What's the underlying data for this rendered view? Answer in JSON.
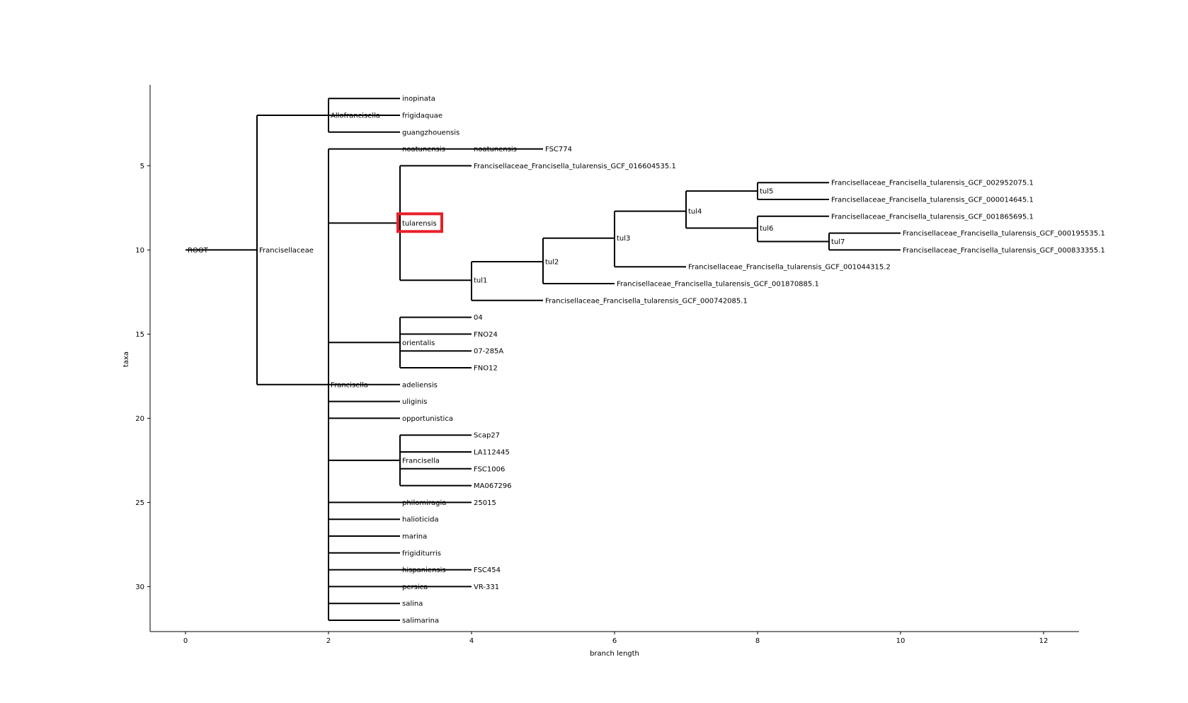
{
  "chart_data": {
    "type": "tree",
    "xlabel": "branch length",
    "ylabel": "taxa",
    "xlim": [
      -0.5,
      12.5
    ],
    "ylim": [
      33,
      0.2
    ],
    "xticks": [
      0,
      2,
      4,
      6,
      8,
      10,
      12
    ],
    "yticks": [
      5,
      10,
      15,
      20,
      25,
      30
    ],
    "highlighted_node": "tularensis",
    "highlight_color": "#e8202a",
    "nodes": [
      {
        "label": "ROOT",
        "x": 0,
        "y": 10
      },
      {
        "label": "Francisellaceae",
        "x": 1,
        "y": 10
      },
      {
        "label": "Allofrancisella",
        "x": 2,
        "y": 2
      },
      {
        "label": "inopinata",
        "x": 3,
        "y": 1
      },
      {
        "label": "frigidaquae",
        "x": 3,
        "y": 2
      },
      {
        "label": "guangzhouensis",
        "x": 3,
        "y": 3
      },
      {
        "label": "Francisella",
        "x": 2,
        "y": 18
      },
      {
        "label": "noatunensis",
        "x": 3,
        "y": 4
      },
      {
        "label": "noatunensis",
        "x": 4,
        "y": 4
      },
      {
        "label": "FSC774",
        "x": 5,
        "y": 4
      },
      {
        "label": "tularensis",
        "x": 3,
        "y": 8.4
      },
      {
        "label": "Francisellaceae_Francisella_tularensis_GCF_016604535.1",
        "x": 4,
        "y": 5
      },
      {
        "label": "tul1",
        "x": 4,
        "y": 11.8
      },
      {
        "label": "tul2",
        "x": 5,
        "y": 10.7
      },
      {
        "label": "Francisellaceae_Francisella_tularensis_GCF_000742085.1",
        "x": 5,
        "y": 13
      },
      {
        "label": "tul3",
        "x": 6,
        "y": 9.3
      },
      {
        "label": "Francisellaceae_Francisella_tularensis_GCF_001870885.1",
        "x": 6,
        "y": 12
      },
      {
        "label": "tul4",
        "x": 7,
        "y": 7.7
      },
      {
        "label": "Francisellaceae_Francisella_tularensis_GCF_001044315.2",
        "x": 7,
        "y": 11
      },
      {
        "label": "tul5",
        "x": 8,
        "y": 6.5
      },
      {
        "label": "Francisellaceae_Francisella_tularensis_GCF_002952075.1",
        "x": 9,
        "y": 6
      },
      {
        "label": "Francisellaceae_Francisella_tularensis_GCF_000014645.1",
        "x": 9,
        "y": 7
      },
      {
        "label": "tul6",
        "x": 8,
        "y": 8.7
      },
      {
        "label": "Francisellaceae_Francisella_tularensis_GCF_001865695.1",
        "x": 9,
        "y": 8
      },
      {
        "label": "tul7",
        "x": 9,
        "y": 9.5
      },
      {
        "label": "Francisellaceae_Francisella_tularensis_GCF_000195535.1",
        "x": 10,
        "y": 9
      },
      {
        "label": "Francisellaceae_Francisella_tularensis_GCF_000833355.1",
        "x": 10,
        "y": 10
      },
      {
        "label": "orientalis",
        "x": 3,
        "y": 15.5
      },
      {
        "label": "04",
        "x": 4,
        "y": 14
      },
      {
        "label": "FNO24",
        "x": 4,
        "y": 15
      },
      {
        "label": "07-285A",
        "x": 4,
        "y": 16
      },
      {
        "label": "FNO12",
        "x": 4,
        "y": 17
      },
      {
        "label": "adeliensis",
        "x": 3,
        "y": 18
      },
      {
        "label": "uliginis",
        "x": 3,
        "y": 19
      },
      {
        "label": "opportunistica",
        "x": 3,
        "y": 20
      },
      {
        "label": "Francisella",
        "x": 3,
        "y": 22.5
      },
      {
        "label": "Scap27",
        "x": 4,
        "y": 21
      },
      {
        "label": "LA112445",
        "x": 4,
        "y": 22
      },
      {
        "label": "FSC1006",
        "x": 4,
        "y": 23
      },
      {
        "label": "MA067296",
        "x": 4,
        "y": 24
      },
      {
        "label": "philomiragia",
        "x": 3,
        "y": 25
      },
      {
        "label": "25015",
        "x": 4,
        "y": 25
      },
      {
        "label": "halioticida",
        "x": 3,
        "y": 26
      },
      {
        "label": "marina",
        "x": 3,
        "y": 27
      },
      {
        "label": "frigiditurris",
        "x": 3,
        "y": 28
      },
      {
        "label": "hispaniensis",
        "x": 3,
        "y": 29
      },
      {
        "label": "FSC454",
        "x": 4,
        "y": 29
      },
      {
        "label": "persica",
        "x": 3,
        "y": 30
      },
      {
        "label": "VR-331",
        "x": 4,
        "y": 30
      },
      {
        "label": "salina",
        "x": 3,
        "y": 31
      },
      {
        "label": "salimarina",
        "x": 3,
        "y": 32
      }
    ],
    "edges": [
      [
        0,
        1
      ],
      [
        1,
        2
      ],
      [
        2,
        3
      ],
      [
        2,
        4
      ],
      [
        2,
        5
      ],
      [
        1,
        6
      ],
      [
        6,
        7
      ],
      [
        7,
        8
      ],
      [
        8,
        9
      ],
      [
        6,
        10
      ],
      [
        10,
        11
      ],
      [
        10,
        12
      ],
      [
        12,
        13
      ],
      [
        12,
        14
      ],
      [
        13,
        15
      ],
      [
        13,
        16
      ],
      [
        15,
        17
      ],
      [
        15,
        18
      ],
      [
        17,
        19
      ],
      [
        19,
        20
      ],
      [
        19,
        21
      ],
      [
        17,
        22
      ],
      [
        22,
        23
      ],
      [
        22,
        24
      ],
      [
        24,
        25
      ],
      [
        24,
        26
      ],
      [
        6,
        27
      ],
      [
        27,
        28
      ],
      [
        27,
        29
      ],
      [
        27,
        30
      ],
      [
        27,
        31
      ],
      [
        6,
        32
      ],
      [
        6,
        33
      ],
      [
        6,
        34
      ],
      [
        6,
        35
      ],
      [
        35,
        36
      ],
      [
        35,
        37
      ],
      [
        35,
        38
      ],
      [
        35,
        39
      ],
      [
        6,
        40
      ],
      [
        40,
        41
      ],
      [
        6,
        42
      ],
      [
        6,
        43
      ],
      [
        6,
        44
      ],
      [
        6,
        45
      ],
      [
        45,
        46
      ],
      [
        6,
        47
      ],
      [
        47,
        48
      ],
      [
        6,
        49
      ],
      [
        6,
        50
      ]
    ]
  }
}
